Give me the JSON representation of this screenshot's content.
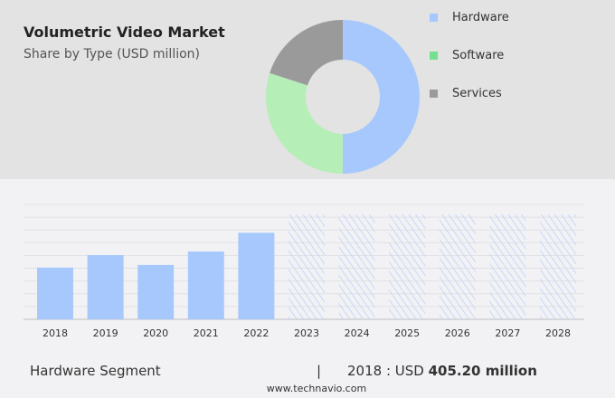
{
  "header": {
    "title": "Volumetric Video Market",
    "subtitle": "Share by Type (USD million)"
  },
  "colors": {
    "hardware": "#a7c8fd",
    "software": "#b6eeb8",
    "services": "#9a9a9a",
    "software_legend": "#72e28f",
    "hatch": "#b9d0fb"
  },
  "chart_data": [
    {
      "type": "pie",
      "donut": true,
      "labels": [
        "Hardware",
        "Software",
        "Services"
      ],
      "values": [
        50,
        30,
        20
      ],
      "legend": "right"
    },
    {
      "type": "bar",
      "categories": [
        "2018",
        "2019",
        "2020",
        "2021",
        "2022",
        "2023",
        "2024",
        "2025",
        "2026",
        "2027",
        "2028"
      ],
      "values": [
        405.2,
        503,
        426,
        531,
        678,
        null,
        null,
        null,
        null,
        null,
        null
      ],
      "forecast_from": "2023",
      "grid": true,
      "xlabel": "",
      "ylabel": ""
    }
  ],
  "footer": {
    "segment": "Hardware Segment",
    "separator": "|",
    "year_prefix": "2018 : USD ",
    "value": "405.20 million",
    "url": "www.technavio.com"
  }
}
